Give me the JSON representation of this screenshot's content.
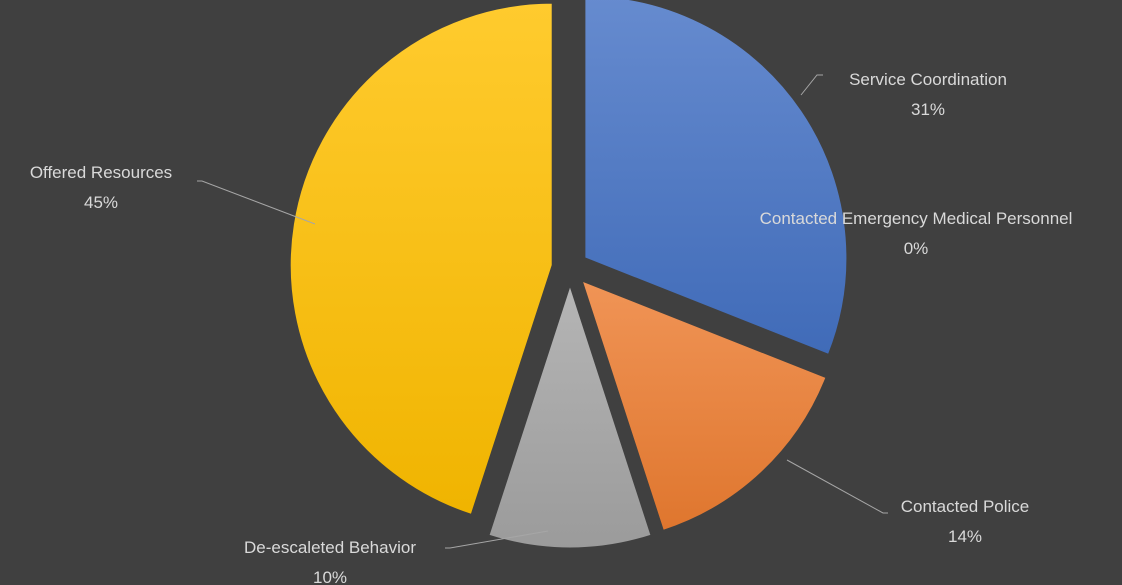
{
  "chart_data": {
    "type": "pie",
    "exploded": true,
    "legend": "none",
    "slices": [
      {
        "label": "Service Coordination",
        "value": 31,
        "percent_label": "31%",
        "color": "#4472c4"
      },
      {
        "label": "Contacted Emergency Medical Personnel",
        "value": 0,
        "percent_label": "0%",
        "color": "#5b9bd5"
      },
      {
        "label": "Contacted Police",
        "value": 14,
        "percent_label": "14%",
        "color": "#ed7d31"
      },
      {
        "label": "De-escaleted Behavior",
        "value": 10,
        "percent_label": "10%",
        "color": "#a5a5a5"
      },
      {
        "label": "Offered Resources",
        "value": 45,
        "percent_label": "45%",
        "color": "#ffc000"
      }
    ]
  }
}
